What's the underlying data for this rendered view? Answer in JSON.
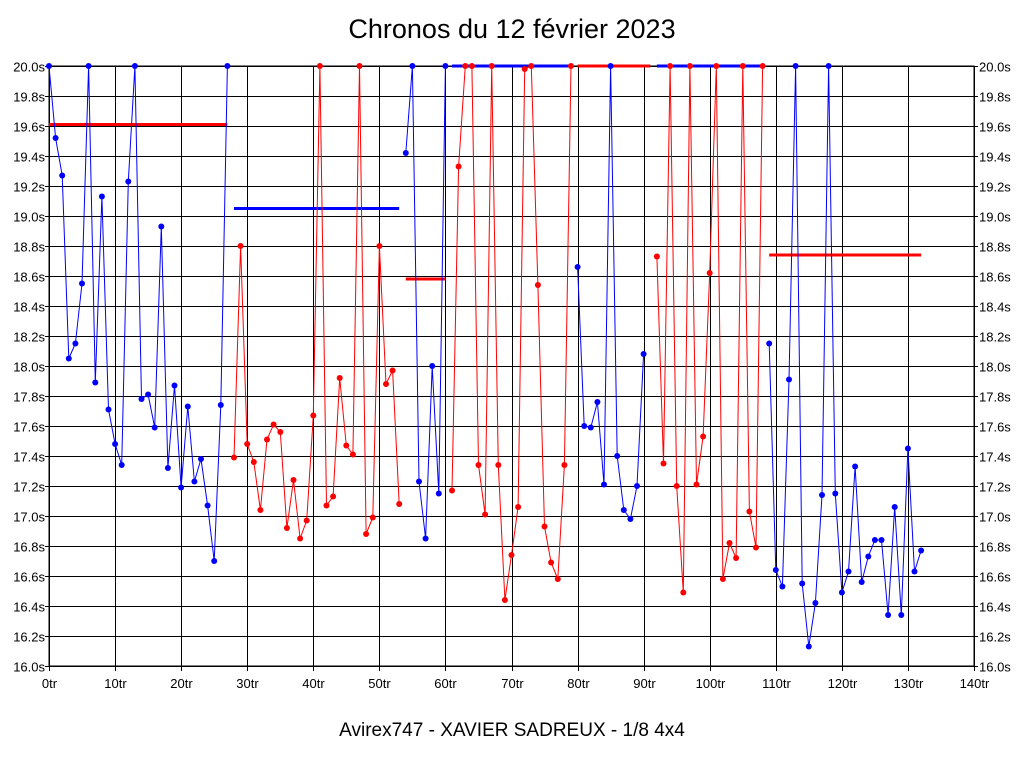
{
  "title": "Chronos du 12 février 2023",
  "footer": "Avirex747 - XAVIER SADREUX - 1/8 4x4",
  "chart_data": {
    "type": "line",
    "title": "Chronos du 12 février 2023",
    "xlabel": "",
    "ylabel": "",
    "xlim": [
      0,
      140
    ],
    "ylim": [
      16.0,
      20.0
    ],
    "grid": true,
    "x_ticks": [
      "0tr",
      "10tr",
      "20tr",
      "30tr",
      "40tr",
      "50tr",
      "60tr",
      "70tr",
      "80tr",
      "90tr",
      "100tr",
      "110tr",
      "120tr",
      "130tr",
      "140tr"
    ],
    "y_ticks": [
      "16.0s",
      "16.2s",
      "16.4s",
      "16.6s",
      "16.8s",
      "17.0s",
      "17.2s",
      "17.4s",
      "17.6s",
      "17.8s",
      "18.0s",
      "18.2s",
      "18.4s",
      "18.6s",
      "18.8s",
      "19.0s",
      "19.2s",
      "19.4s",
      "19.6s",
      "19.8s",
      "20.0s"
    ],
    "colors": {
      "blue": "#0000ff",
      "red": "#ff0000"
    },
    "segments": [
      {
        "color": "blue",
        "x_start": 0,
        "y": [
          20.0,
          19.52,
          19.27,
          18.05,
          18.15,
          18.55,
          20.0,
          17.89,
          19.13,
          17.71,
          17.48,
          17.34,
          19.23,
          20.0,
          17.78,
          17.81,
          17.59,
          18.93,
          17.32,
          17.87,
          17.19,
          17.73,
          17.23,
          17.38,
          17.07,
          16.7,
          17.74,
          20.0
        ]
      },
      {
        "color": "red",
        "x_start": 28,
        "y": [
          17.39,
          18.8,
          17.48,
          17.36,
          17.04,
          17.51,
          17.61,
          17.56,
          16.92,
          17.24,
          16.85,
          16.97,
          17.67,
          20.0,
          17.07,
          17.13,
          17.92,
          17.47,
          17.41,
          20.0,
          16.88,
          16.99,
          18.8,
          17.88,
          17.97,
          17.08
        ]
      },
      {
        "color": "blue",
        "x_start": 54,
        "y": [
          19.42,
          20.0,
          17.23,
          16.85,
          18.0,
          17.15,
          20.0
        ]
      },
      {
        "color": "red",
        "x_start": 61,
        "y": [
          17.17,
          19.33,
          20.0,
          20.0,
          17.34,
          17.01,
          20.0,
          17.34,
          16.44,
          16.74,
          17.06,
          19.98,
          20.0,
          18.54,
          16.93,
          16.69,
          16.58,
          17.34,
          20.0
        ]
      },
      {
        "color": "blue",
        "x_start": 80,
        "y": [
          18.66,
          17.6,
          17.59,
          17.76,
          17.21,
          20.0,
          17.4,
          17.04,
          16.98,
          17.2,
          18.08
        ]
      },
      {
        "color": "red",
        "x_start": 92,
        "y": [
          18.73,
          17.35,
          20.0,
          17.2,
          16.49,
          20.0,
          17.21,
          17.53,
          18.62,
          20.0,
          16.58,
          16.82,
          16.72,
          20.0,
          17.03,
          16.79,
          20.0
        ]
      },
      {
        "color": "blue",
        "x_start": 109,
        "y": [
          18.15,
          16.64,
          16.53,
          17.91,
          20.0,
          16.55,
          16.13,
          16.42,
          17.14,
          20.0,
          17.15,
          16.49,
          16.63,
          17.33,
          16.56,
          16.73,
          16.84,
          16.84,
          16.34,
          17.06,
          16.34,
          17.45,
          16.63,
          16.77
        ]
      }
    ],
    "average_lines": [
      {
        "color": "red",
        "x_start": 0,
        "x_end": 27,
        "y": 19.61
      },
      {
        "color": "blue",
        "x_start": 28,
        "x_end": 53,
        "y": 19.05
      },
      {
        "color": "red",
        "x_start": 54,
        "x_end": 60,
        "y": 18.58
      },
      {
        "color": "blue",
        "x_start": 61,
        "x_end": 79,
        "y": 20.0
      },
      {
        "color": "red",
        "x_start": 80,
        "x_end": 91,
        "y": 20.0
      },
      {
        "color": "blue",
        "x_start": 92,
        "x_end": 108,
        "y": 20.0
      },
      {
        "color": "red",
        "x_start": 109,
        "x_end": 132,
        "y": 18.74
      }
    ]
  }
}
